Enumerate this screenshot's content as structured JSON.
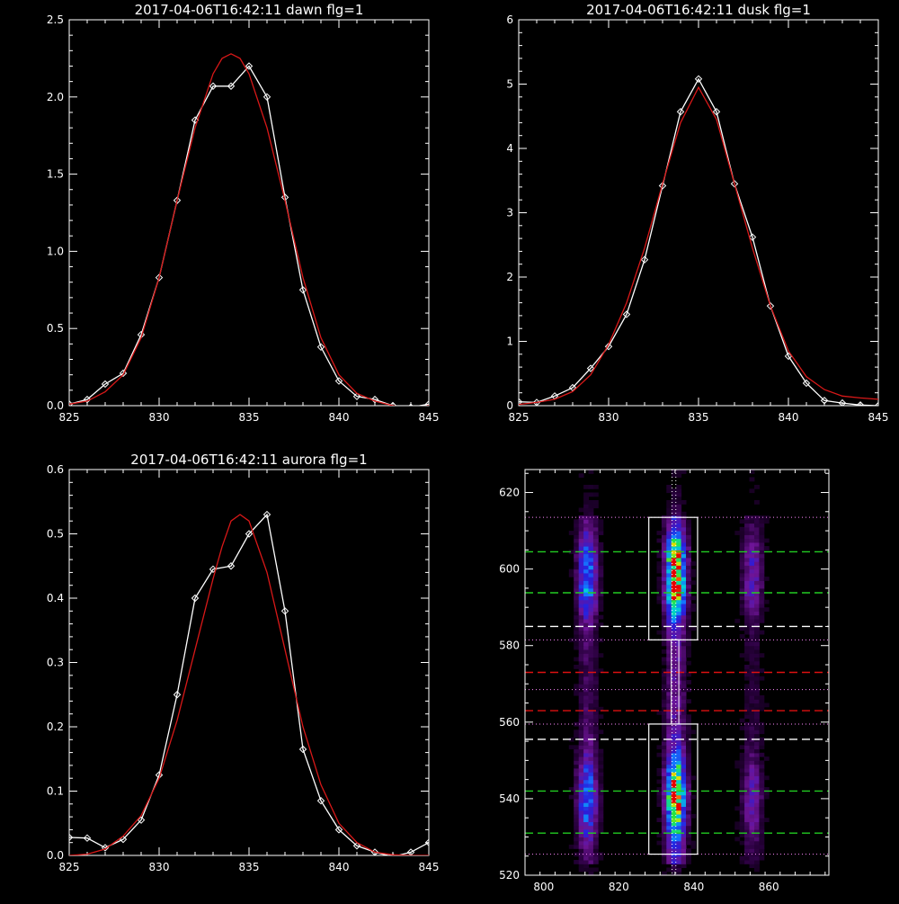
{
  "chart_data": [
    {
      "type": "line",
      "title": "2017-04-06T16:42:11 dawn flg=1",
      "xlim": [
        825,
        845
      ],
      "ylim": [
        0,
        2.5
      ],
      "xticks": [
        "825",
        "830",
        "835",
        "840",
        "845"
      ],
      "yticks": [
        "0.0",
        "0.5",
        "1.0",
        "1.5",
        "2.0",
        "2.5"
      ],
      "series": [
        {
          "color": "#ffffff",
          "marker": "diamond",
          "x": [
            825,
            826,
            827,
            828,
            829,
            830,
            831,
            832,
            833,
            834,
            835,
            836,
            837,
            838,
            839,
            840,
            841,
            842,
            843,
            844,
            845
          ],
          "y": [
            0.01,
            0.04,
            0.14,
            0.21,
            0.46,
            0.83,
            1.33,
            1.85,
            2.07,
            2.07,
            2.2,
            2.0,
            1.35,
            0.75,
            0.38,
            0.16,
            0.06,
            0.04,
            0.0,
            -0.01,
            0.01
          ]
        },
        {
          "color": "#d81818",
          "x": [
            825,
            826,
            827,
            828,
            829,
            830,
            831,
            832,
            833,
            833.5,
            834,
            834.5,
            835,
            836,
            837,
            838,
            839,
            840,
            841,
            842,
            843,
            844,
            845
          ],
          "y": [
            0.01,
            0.03,
            0.09,
            0.2,
            0.44,
            0.83,
            1.33,
            1.8,
            2.15,
            2.25,
            2.28,
            2.25,
            2.15,
            1.8,
            1.33,
            0.83,
            0.44,
            0.2,
            0.08,
            0.03,
            0.0,
            -0.02,
            0.0
          ]
        }
      ]
    },
    {
      "type": "line",
      "title": "2017-04-06T16:42:11 dusk flg=1",
      "xlim": [
        825,
        845
      ],
      "ylim": [
        0,
        6
      ],
      "xticks": [
        "825",
        "830",
        "835",
        "840",
        "845"
      ],
      "yticks": [
        "0",
        "1",
        "2",
        "3",
        "4",
        "5",
        "6"
      ],
      "series": [
        {
          "color": "#ffffff",
          "marker": "diamond",
          "x": [
            825,
            826,
            827,
            828,
            829,
            830,
            831,
            832,
            833,
            834,
            835,
            836,
            837,
            838,
            839,
            840,
            841,
            842,
            843,
            844,
            845
          ],
          "y": [
            0.06,
            0.05,
            0.15,
            0.28,
            0.58,
            0.92,
            1.42,
            2.27,
            3.42,
            4.57,
            5.08,
            4.57,
            3.45,
            2.62,
            1.55,
            0.77,
            0.35,
            0.08,
            0.04,
            0.01,
            0.0
          ]
        },
        {
          "color": "#d81818",
          "x": [
            825,
            826,
            827,
            828,
            829,
            830,
            831,
            832,
            833,
            834,
            835,
            836,
            837,
            838,
            839,
            840,
            841,
            842,
            843,
            844,
            845
          ],
          "y": [
            0.02,
            0.05,
            0.1,
            0.22,
            0.48,
            0.95,
            1.6,
            2.45,
            3.45,
            4.4,
            4.95,
            4.45,
            3.45,
            2.45,
            1.55,
            0.85,
            0.45,
            0.25,
            0.15,
            0.12,
            0.1
          ]
        }
      ]
    },
    {
      "type": "line",
      "title": "2017-04-06T16:42:11 aurora flg=1",
      "xlim": [
        825,
        845
      ],
      "ylim": [
        0,
        0.6
      ],
      "xticks": [
        "825",
        "830",
        "835",
        "840",
        "845"
      ],
      "yticks": [
        "0.0",
        "0.1",
        "0.2",
        "0.3",
        "0.4",
        "0.5",
        "0.6"
      ],
      "series": [
        {
          "color": "#ffffff",
          "marker": "diamond",
          "x": [
            825,
            826,
            827,
            828,
            829,
            830,
            831,
            832,
            833,
            834,
            835,
            836,
            837,
            838,
            839,
            840,
            841,
            842,
            843,
            844,
            845
          ],
          "y": [
            0.028,
            0.027,
            0.012,
            0.025,
            0.055,
            0.125,
            0.25,
            0.4,
            0.445,
            0.45,
            0.5,
            0.53,
            0.38,
            0.165,
            0.085,
            0.04,
            0.015,
            0.005,
            -0.002,
            0.005,
            0.02
          ]
        },
        {
          "color": "#d81818",
          "x": [
            825,
            826,
            827,
            828,
            829,
            830,
            831,
            832,
            833,
            833.5,
            834,
            834.5,
            835,
            836,
            837,
            838,
            839,
            840,
            841,
            842,
            843,
            844,
            845
          ],
          "y": [
            0.0,
            0.002,
            0.01,
            0.03,
            0.062,
            0.12,
            0.21,
            0.32,
            0.43,
            0.48,
            0.52,
            0.53,
            0.52,
            0.44,
            0.32,
            0.2,
            0.11,
            0.05,
            0.02,
            0.005,
            0.001,
            0.0,
            0.0
          ]
        }
      ]
    },
    {
      "type": "heatmap",
      "xlim": [
        795,
        876
      ],
      "ylim": [
        520,
        626
      ],
      "xticks": [
        "800",
        "820",
        "840",
        "860"
      ],
      "yticks": [
        "520",
        "540",
        "560",
        "580",
        "600",
        "620"
      ],
      "emission_bands": [
        {
          "x_center": 811,
          "brightness": 0.55
        },
        {
          "x_center": 834.5,
          "brightness": 1.0
        },
        {
          "x_center": 855,
          "brightness": 0.3
        }
      ],
      "boxes": [
        {
          "x": [
            828,
            841
          ],
          "y": [
            581.5,
            613.5
          ],
          "color": "#ffffff"
        },
        {
          "x": [
            828,
            841
          ],
          "y": [
            525.5,
            559.5
          ],
          "color": "#ffffff"
        }
      ],
      "vertical_lines": [
        {
          "x": 834.2,
          "color": "#ffffff",
          "style": "dotted"
        },
        {
          "x": 835.2,
          "color": "#ffffff",
          "style": "dotted"
        }
      ],
      "horizontal_lines": [
        {
          "y": 613.5,
          "color": "#ff88ff",
          "style": "dotted"
        },
        {
          "y": 604.5,
          "color": "#22cc22",
          "style": "dashed"
        },
        {
          "y": 593.8,
          "color": "#22cc22",
          "style": "dashed"
        },
        {
          "y": 585.0,
          "color": "#ffffff",
          "style": "dashed"
        },
        {
          "y": 581.5,
          "color": "#ff88ff",
          "style": "dotted"
        },
        {
          "y": 573.0,
          "color": "#dd1111",
          "style": "dashed"
        },
        {
          "y": 568.5,
          "color": "#ff88ff",
          "style": "dotted"
        },
        {
          "y": 563.0,
          "color": "#dd1111",
          "style": "dashed"
        },
        {
          "y": 559.5,
          "color": "#ff88ff",
          "style": "dotted"
        },
        {
          "y": 555.5,
          "color": "#ffffff",
          "style": "dashed"
        },
        {
          "y": 542.0,
          "color": "#22cc22",
          "style": "dashed"
        },
        {
          "y": 531.0,
          "color": "#22cc22",
          "style": "dashed"
        },
        {
          "y": 525.5,
          "color": "#ff88ff",
          "style": "dotted"
        }
      ]
    }
  ]
}
